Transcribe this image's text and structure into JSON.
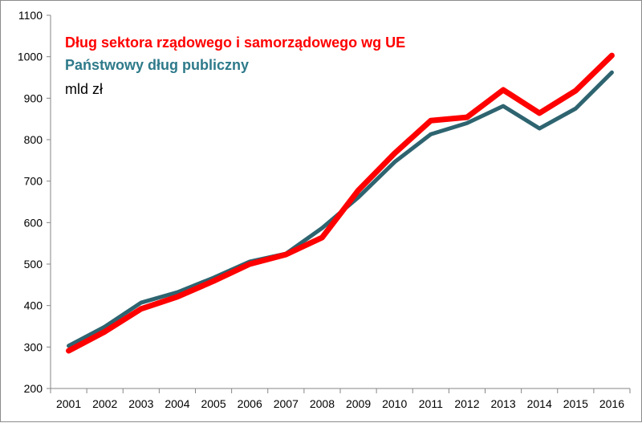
{
  "chart_data": {
    "type": "line",
    "title": "",
    "xlabel": "",
    "ylabel": "",
    "unit_label": "mld zł",
    "categories": [
      "2001",
      "2002",
      "2003",
      "2004",
      "2005",
      "2006",
      "2007",
      "2008",
      "2009",
      "2010",
      "2011",
      "2012",
      "2013",
      "2014",
      "2015",
      "2016"
    ],
    "ylim": [
      200,
      1100
    ],
    "yticks": [
      "200",
      "300",
      "400",
      "500",
      "600",
      "700",
      "800",
      "900",
      "1000",
      "1100"
    ],
    "grid": false,
    "legend": "top-left",
    "series": [
      {
        "name": "Dług sektora rządowego i samorządowego wg UE",
        "color": "#ff0000",
        "values": [
          291,
          337,
          392,
          421,
          459,
          500,
          523,
          564,
          678,
          767,
          846,
          854,
          920,
          864,
          918,
          1003
        ]
      },
      {
        "name": "Państwowy dług publiczny",
        "color": "#2e6470",
        "values": [
          303,
          349,
          407,
          432,
          467,
          506,
          525,
          587,
          661,
          746,
          813,
          840,
          881,
          827,
          875,
          962
        ]
      }
    ]
  }
}
